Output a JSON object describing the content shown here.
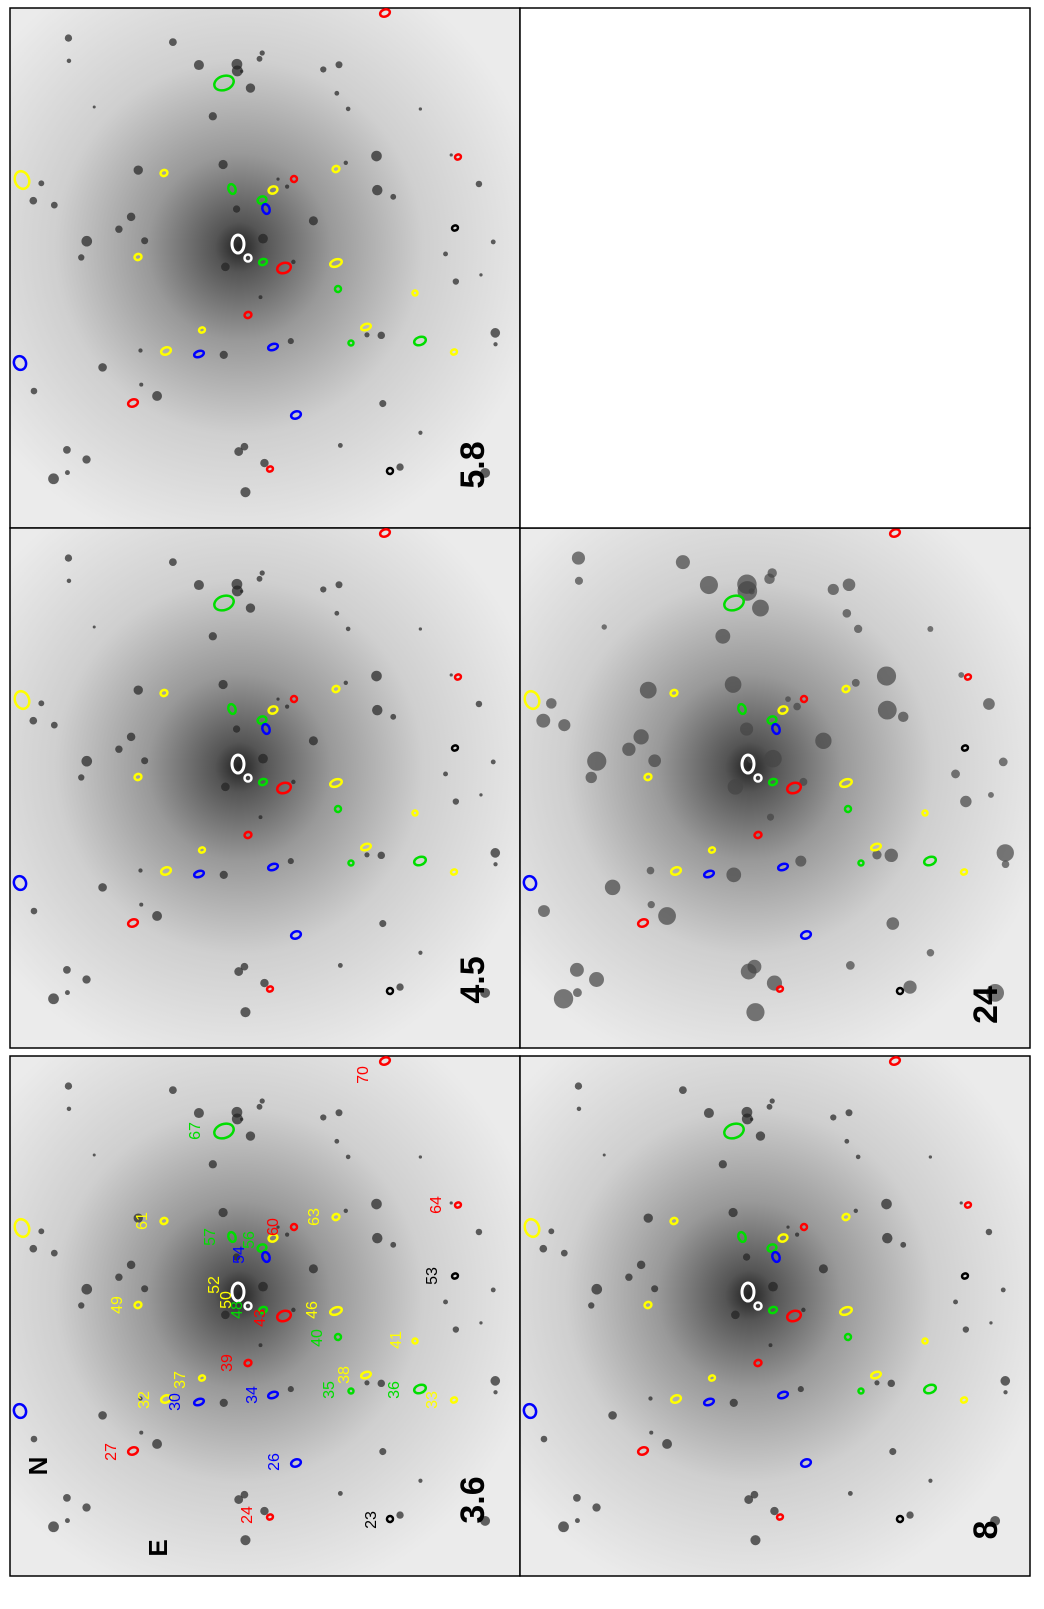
{
  "panels": [
    {
      "band": "5.8"
    },
    {
      "band": "4.5"
    },
    {
      "band": "3.6"
    },
    {
      "band": "24"
    },
    {
      "band": "8"
    }
  ],
  "compass": {
    "north": "N",
    "east": "E"
  },
  "regions": [
    {
      "label": "24",
      "color": "#ff0000"
    },
    {
      "label": "23",
      "color": "#000000"
    },
    {
      "label": "26",
      "color": "#0000ff"
    },
    {
      "label": "27",
      "color": "#ff0000"
    },
    {
      "label": "30",
      "color": "#0000ff"
    },
    {
      "label": "32",
      "color": "#ffff00"
    },
    {
      "label": "37",
      "color": "#ffff00"
    },
    {
      "label": "34",
      "color": "#0000ff"
    },
    {
      "label": "39",
      "color": "#ff0000"
    },
    {
      "label": "35",
      "color": "#00dd00"
    },
    {
      "label": "38",
      "color": "#ffff00"
    },
    {
      "label": "36",
      "color": "#00dd00"
    },
    {
      "label": "33",
      "color": "#ffff00"
    },
    {
      "label": "41",
      "color": "#ffff00"
    },
    {
      "label": "40",
      "color": "#00dd00"
    },
    {
      "label": "46",
      "color": "#ffff00"
    },
    {
      "label": "43",
      "color": "#ff0000"
    },
    {
      "label": "48",
      "color": "#00dd00"
    },
    {
      "label": "50",
      "color": "#ffff00"
    },
    {
      "label": "52",
      "color": "#ffff00"
    },
    {
      "label": "49",
      "color": "#ffff00"
    },
    {
      "label": "61",
      "color": "#ffff00"
    },
    {
      "label": "64",
      "color": "#ff0000"
    },
    {
      "label": "53",
      "color": "#000000"
    },
    {
      "label": "63",
      "color": "#ffff00"
    },
    {
      "label": "60",
      "color": "#ff0000"
    },
    {
      "label": "57",
      "color": "#00dd00"
    },
    {
      "label": "56",
      "color": "#00dd00"
    },
    {
      "label": "54",
      "color": "#0000ff"
    },
    {
      "label": "67",
      "color": "#00dd00"
    },
    {
      "label": "70",
      "color": "#ff0000"
    }
  ]
}
